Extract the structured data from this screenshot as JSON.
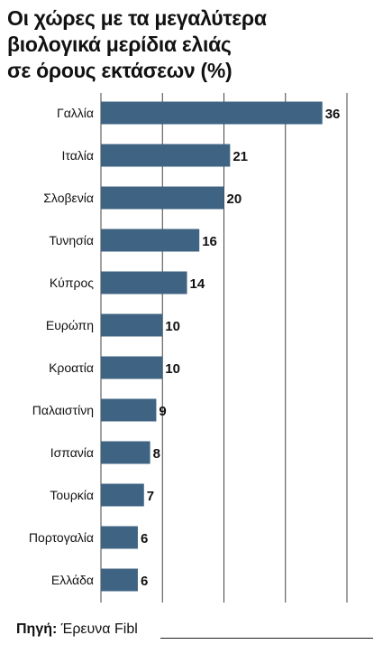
{
  "header": {
    "title_lines": [
      "Οι χώρες με τα μεγαλύτερα",
      "βιολογικά μερίδια ελιάς",
      "σε όρους εκτάσεων (%)"
    ]
  },
  "chart_data": {
    "type": "bar",
    "orientation": "horizontal",
    "categories": [
      "Γαλλία",
      "Ιταλία",
      "Σλοβενία",
      "Τυνησία",
      "Κύπρος",
      "Ευρώπη",
      "Κροατία",
      "Παλαιστίνη",
      "Ισπανία",
      "Τουρκία",
      "Πορτογαλία",
      "Ελλάδα"
    ],
    "values": [
      36,
      21,
      20,
      16,
      14,
      10,
      10,
      9,
      8,
      7,
      6,
      6
    ],
    "value_labels": [
      "36",
      "21",
      "20",
      "16",
      "14",
      "10",
      "10",
      "9",
      "8",
      "7",
      "6",
      "6"
    ],
    "xlim": [
      0,
      40
    ],
    "grid": true,
    "bar_color": "#3f6382"
  },
  "footer": {
    "source_label": "Πηγή:",
    "source_text": " Έρευνα Fibl"
  }
}
